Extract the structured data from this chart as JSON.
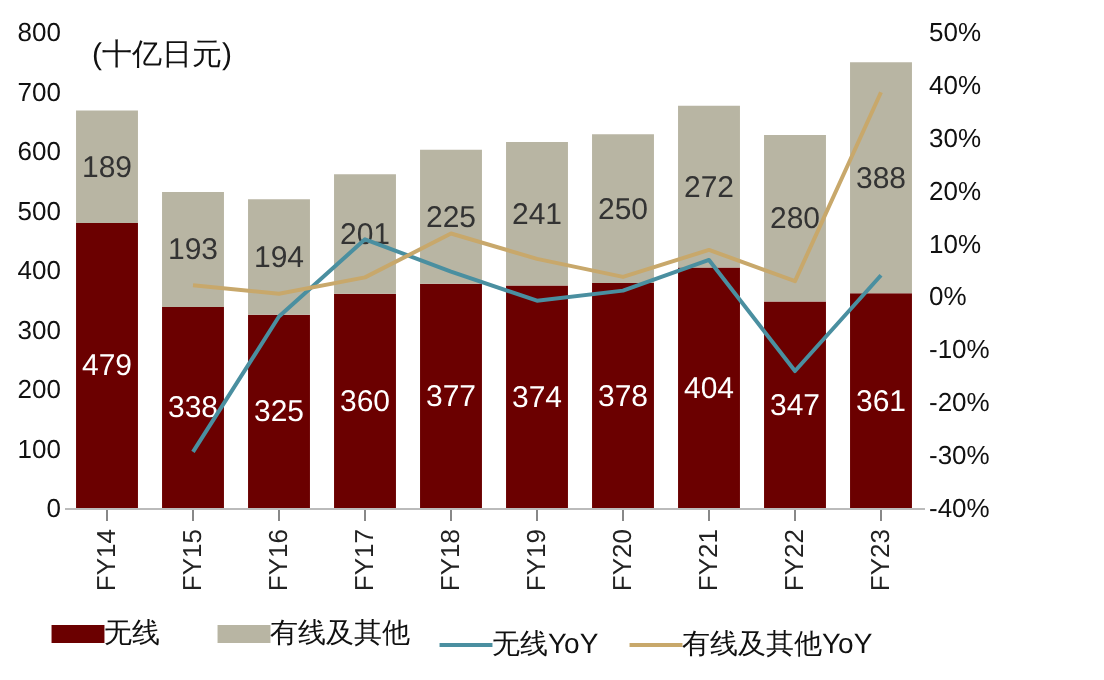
{
  "chart_data": {
    "type": "bar",
    "stacked": true,
    "legend": "bottom",
    "grid": false,
    "annotations": [
      "(十亿日元)"
    ],
    "categories": [
      "FY14",
      "FY15",
      "FY16",
      "FY17",
      "FY18",
      "FY19",
      "FY20",
      "FY21",
      "FY22",
      "FY23"
    ],
    "series": [
      {
        "name": "无线",
        "color": "#6b0000",
        "values": [
          479,
          338,
          325,
          360,
          377,
          374,
          378,
          404,
          347,
          361
        ],
        "value_labels": [
          "479",
          "338",
          "325",
          "360",
          "377",
          "374",
          "378",
          "404",
          "347",
          "361"
        ]
      },
      {
        "name": "有线及其他",
        "color": "#b8b5a3",
        "values": [
          189,
          193,
          194,
          201,
          225,
          241,
          250,
          272,
          280,
          388
        ],
        "value_labels": [
          "189",
          "193",
          "194",
          "201",
          "225",
          "241",
          "250",
          "272",
          "280",
          "388"
        ]
      },
      {
        "name": "无线YoY",
        "type": "line",
        "axis": "y2",
        "color": "#4a8fa0",
        "values": [
          null,
          -29.4,
          -3.8,
          10.8,
          4.7,
          -0.8,
          1.1,
          6.9,
          -14.1,
          4.0
        ]
      },
      {
        "name": "有线及其他YoY",
        "type": "line",
        "axis": "y2",
        "color": "#c8a86b",
        "values": [
          null,
          2.1,
          0.5,
          3.6,
          11.9,
          7.1,
          3.7,
          8.8,
          2.9,
          38.6
        ]
      }
    ],
    "ylim": [
      0,
      800
    ],
    "yticks": [
      0,
      100,
      200,
      300,
      400,
      500,
      600,
      700,
      800
    ],
    "y2lim": [
      -40,
      50
    ],
    "y2ticks": [
      {
        "value": -40,
        "label": "-40%"
      },
      {
        "value": -30,
        "label": "-30%"
      },
      {
        "value": -20,
        "label": "-20%"
      },
      {
        "value": -10,
        "label": "-10%"
      },
      {
        "value": 0,
        "label": "0%"
      },
      {
        "value": 10,
        "label": "10%"
      },
      {
        "value": 20,
        "label": "20%"
      },
      {
        "value": 30,
        "label": "30%"
      },
      {
        "value": 40,
        "label": "40%"
      },
      {
        "value": 50,
        "label": "50%"
      }
    ]
  }
}
